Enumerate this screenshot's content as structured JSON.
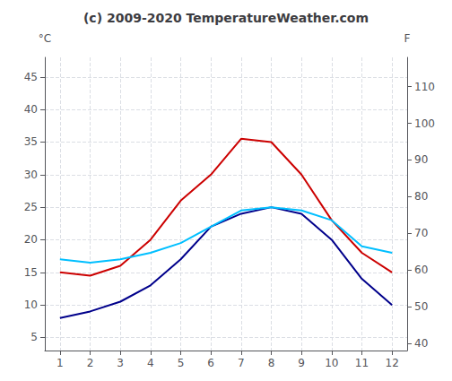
{
  "chart_data": {
    "type": "line",
    "title": "(c) 2009-2020 TemperatureWeather.com",
    "ylabel": "°C",
    "y2label": "F",
    "x": [
      1,
      2,
      3,
      4,
      5,
      6,
      7,
      8,
      9,
      10,
      11,
      12
    ],
    "xlim": [
      0.5,
      12.5
    ],
    "xticks": [
      1,
      2,
      3,
      4,
      5,
      6,
      7,
      8,
      9,
      10,
      11,
      12
    ],
    "ylim": [
      3,
      48
    ],
    "yticks": [
      5,
      10,
      15,
      20,
      25,
      30,
      35,
      40,
      45
    ],
    "y2lim": [
      38,
      118
    ],
    "y2ticks": [
      40,
      50,
      60,
      70,
      80,
      90,
      100,
      110
    ],
    "grid": true,
    "series": [
      {
        "color": "#cc0000",
        "values": [
          15,
          14.5,
          16,
          20,
          26,
          30,
          35.5,
          35,
          30,
          23,
          18,
          15
        ]
      },
      {
        "color": "#00008b",
        "values": [
          8,
          9,
          10.5,
          13,
          17,
          22,
          24,
          25,
          24,
          20,
          14,
          10
        ]
      },
      {
        "color": "#00bfff",
        "values": [
          17,
          16.5,
          17,
          18,
          19.5,
          22,
          24.5,
          25,
          24.5,
          23,
          19,
          18
        ]
      }
    ]
  }
}
